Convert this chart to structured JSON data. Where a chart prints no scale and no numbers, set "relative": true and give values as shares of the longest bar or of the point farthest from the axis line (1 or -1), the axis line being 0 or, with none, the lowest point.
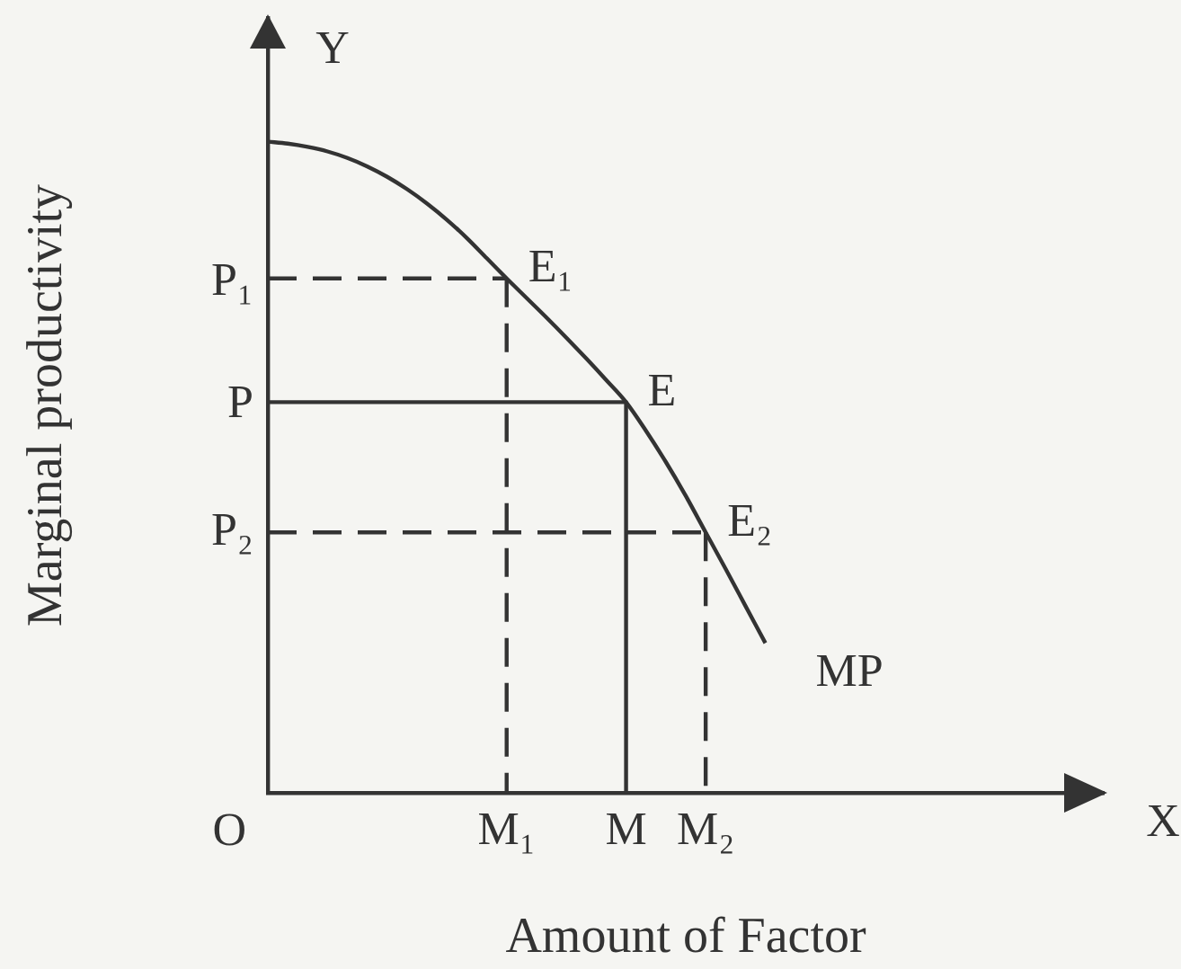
{
  "chart_data": {
    "type": "line",
    "relative": true,
    "xlabel": "Amount of Factor",
    "ylabel": "Marginal productivity",
    "categories": [
      null,
      null,
      null,
      null,
      null,
      null,
      null,
      null,
      null,
      null,
      null,
      null,
      "M₁",
      null,
      null,
      null,
      null,
      null,
      "M",
      null,
      null,
      null,
      "M₂",
      null,
      null,
      null,
      null,
      null,
      null,
      null,
      null,
      null,
      null,
      null,
      null,
      null,
      null,
      null,
      null,
      null,
      null,
      null,
      null
    ],
    "series": [
      {
        "name": "MP",
        "color": "#333333",
        "values": [
          1,
          0.997,
          0.992,
          0.985,
          0.975,
          0.962,
          0.946,
          0.927,
          0.905,
          0.88,
          0.852,
          0.821,
          0.79,
          0.76,
          0.73,
          0.699,
          0.667,
          0.634,
          0.6,
          0.556,
          0.508,
          0.456,
          0.4,
          0.344,
          0.287,
          0.23,
          null,
          null,
          null,
          null,
          null,
          null,
          null,
          null,
          null,
          null,
          null,
          null,
          null,
          null,
          null,
          null,
          null
        ]
      },
      {
        "color": "#333333",
        "line_style": "dashed",
        "values": [
          0.79,
          0.79,
          0.79,
          0.79,
          0.79,
          0.79,
          0.79,
          0.79,
          0.79,
          0.79,
          0.79,
          0.79,
          0.79,
          null,
          null,
          null,
          null,
          null,
          null,
          null,
          null,
          null,
          null,
          null,
          null,
          null,
          null,
          null,
          null,
          null,
          null,
          null,
          null,
          null,
          null,
          null,
          null,
          null,
          null,
          null,
          null,
          null,
          null
        ]
      },
      {
        "color": "#333333",
        "line_style": "dashed",
        "x": [
          "M₁",
          "M₁"
        ],
        "values": [
          0.79,
          0
        ]
      },
      {
        "color": "#333333",
        "values": [
          0.6,
          0.6,
          0.6,
          0.6,
          0.6,
          0.6,
          0.6,
          0.6,
          0.6,
          0.6,
          0.6,
          0.6,
          0.6,
          0.6,
          0.6,
          0.6,
          0.6,
          0.6,
          0.6,
          null,
          null,
          null,
          null,
          null,
          null,
          null,
          null,
          null,
          null,
          null,
          null,
          null,
          null,
          null,
          null,
          null,
          null,
          null,
          null,
          null,
          null,
          null,
          null
        ]
      },
      {
        "color": "#333333",
        "x": [
          "M",
          "M"
        ],
        "values": [
          0.6,
          0
        ]
      },
      {
        "color": "#333333",
        "line_style": "dashed",
        "values": [
          0.4,
          0.4,
          0.4,
          0.4,
          0.4,
          0.4,
          0.4,
          0.4,
          0.4,
          0.4,
          0.4,
          0.4,
          0.4,
          0.4,
          0.4,
          0.4,
          0.4,
          0.4,
          0.4,
          0.4,
          0.4,
          0.4,
          0.4,
          null,
          null,
          null,
          null,
          null,
          null,
          null,
          null,
          null,
          null,
          null,
          null,
          null,
          null,
          null,
          null,
          null,
          null,
          null,
          null
        ]
      },
      {
        "color": "#333333",
        "line_style": "dashed",
        "x": [
          "M₂",
          "M₂"
        ],
        "values": [
          0.4,
          0
        ]
      }
    ],
    "annotations": [
      "Y",
      "X",
      "O",
      "P₁",
      "P",
      "P₂",
      {
        "text": "E₁",
        "x": "M₁",
        "y": 0.79
      },
      {
        "text": "E",
        "x": "M",
        "y": 0.6
      },
      {
        "text": "E₂",
        "x": "M₂",
        "y": 0.4
      }
    ]
  }
}
